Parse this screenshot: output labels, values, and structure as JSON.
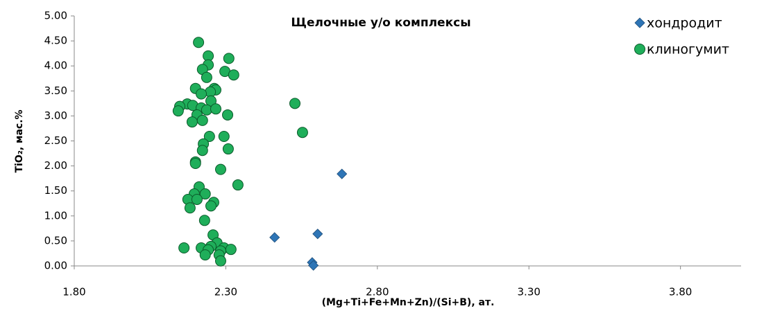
{
  "chart_data": {
    "type": "scatter",
    "title": "Щелочные у/о комплексы",
    "x_label": "(Mg+Ti+Fe+Mn+Zn)/(Si+B),  ат.",
    "y_label": "TiO₂,  мас.%",
    "xlim": [
      1.8,
      4.0
    ],
    "ylim": [
      0,
      5
    ],
    "xticks": [
      {
        "value": 1.8,
        "label": "1.80"
      },
      {
        "value": 2.3,
        "label": "2.30"
      },
      {
        "value": 2.8,
        "label": "2.80"
      },
      {
        "value": 3.3,
        "label": "3.30"
      },
      {
        "value": 3.8,
        "label": "3.80"
      }
    ],
    "yticks": [
      {
        "value": 0,
        "label": "0.00"
      },
      {
        "value": 0.5,
        "label": "0.50"
      },
      {
        "value": 1,
        "label": "1.00"
      },
      {
        "value": 1.5,
        "label": "1.50"
      },
      {
        "value": 2,
        "label": "2.00"
      },
      {
        "value": 2.5,
        "label": "2.50"
      },
      {
        "value": 3,
        "label": "3.00"
      },
      {
        "value": 3.5,
        "label": "3.50"
      },
      {
        "value": 4,
        "label": "4.00"
      },
      {
        "value": 4.5,
        "label": "4.50"
      },
      {
        "value": 5,
        "label": "5.00"
      }
    ],
    "legend": "top-right",
    "series": [
      {
        "name": "хондродит",
        "color": "#2e75b6",
        "marker": "diamond",
        "x": [
          2.461,
          2.603,
          2.683,
          2.585,
          2.589
        ],
        "values": [
          0.57,
          0.64,
          1.84,
          0.07,
          0.01
        ]
      },
      {
        "name": "клиногумит",
        "color": "#1fae5a",
        "marker": "circle",
        "x": [
          2.21,
          2.242,
          2.31,
          2.242,
          2.223,
          2.297,
          2.326,
          2.237,
          2.2,
          2.262,
          2.267,
          2.249,
          2.219,
          2.528,
          2.251,
          2.173,
          2.191,
          2.148,
          2.219,
          2.143,
          2.237,
          2.267,
          2.205,
          2.306,
          2.189,
          2.223,
          2.553,
          2.246,
          2.294,
          2.226,
          2.308,
          2.223,
          2.2,
          2.2,
          2.283,
          2.34,
          2.212,
          2.196,
          2.232,
          2.175,
          2.205,
          2.26,
          2.251,
          2.182,
          2.23,
          2.258,
          2.271,
          2.162,
          2.219,
          2.251,
          2.242,
          2.294,
          2.317,
          2.283,
          2.232,
          2.278,
          2.283
        ],
        "values": [
          4.47,
          4.2,
          4.15,
          4.02,
          3.93,
          3.89,
          3.82,
          3.77,
          3.55,
          3.55,
          3.52,
          3.48,
          3.44,
          3.25,
          3.3,
          3.24,
          3.21,
          3.19,
          3.16,
          3.1,
          3.12,
          3.14,
          3.02,
          3.02,
          2.88,
          2.91,
          2.67,
          2.59,
          2.59,
          2.44,
          2.34,
          2.31,
          2.08,
          2.05,
          1.93,
          1.62,
          1.58,
          1.44,
          1.44,
          1.33,
          1.33,
          1.27,
          1.2,
          1.16,
          0.91,
          0.62,
          0.46,
          0.36,
          0.36,
          0.39,
          0.32,
          0.36,
          0.33,
          0.3,
          0.22,
          0.22,
          0.1
        ]
      }
    ]
  }
}
